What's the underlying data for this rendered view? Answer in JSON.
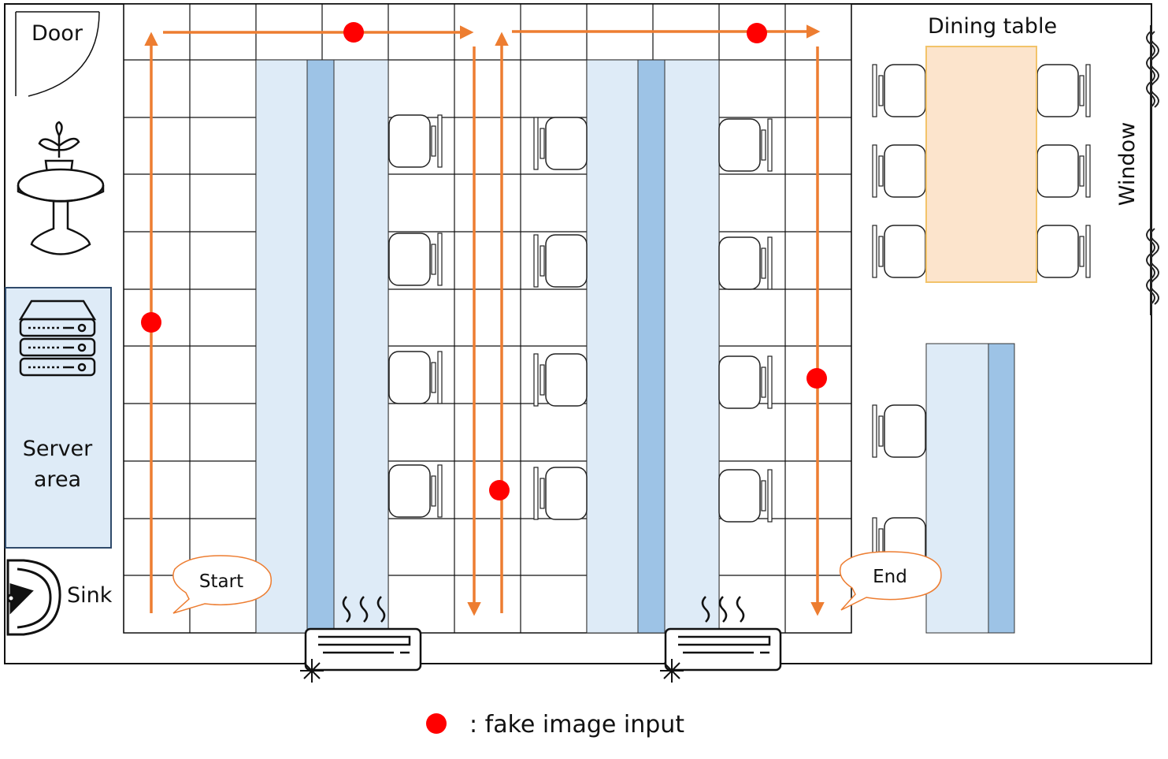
{
  "labels": {
    "door": "Door",
    "server_area_line1": "Server",
    "server_area_line2": "area",
    "sink": "Sink",
    "dining_table": "Dining table",
    "window": "Window",
    "start": "Start",
    "end": "End"
  },
  "legend": {
    "text": ": fake image input"
  },
  "colors": {
    "path": "#ED7D31",
    "fake_input_marker": "#FF0000",
    "aisle_fill": "#DEEBF7",
    "aisle_core": "#9DC3E6",
    "dining_table_fill": "#FCE4CC",
    "dining_table_border": "#F2C36A",
    "server_fill": "#DEEBF7",
    "server_border": "#2F4A6B"
  },
  "icons": [
    "door-icon",
    "plant-table-icon",
    "server-icon",
    "sink-icon",
    "chair-icon",
    "air-conditioner-icon",
    "window-curtain-icon"
  ]
}
